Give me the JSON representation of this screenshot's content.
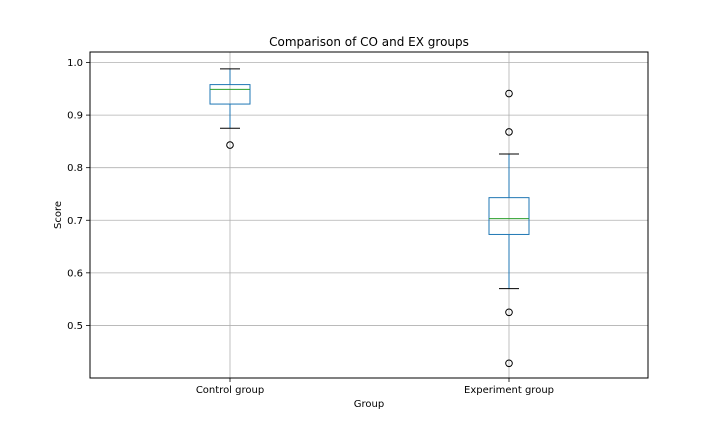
{
  "chart_data": {
    "type": "boxplot",
    "title": "Comparison of CO and EX groups",
    "xlabel": "Group",
    "ylabel": "Score",
    "categories": [
      "Control group",
      "Experiment group"
    ],
    "ylim": [
      0.4,
      1.02
    ],
    "yticks": [
      0.5,
      0.6,
      0.7,
      0.8,
      0.9,
      1.0
    ],
    "ytick_labels": [
      "0.5",
      "0.6",
      "0.7",
      "0.8",
      "0.9",
      "1.0"
    ],
    "grid": true,
    "boxes": [
      {
        "whisker_low": 0.875,
        "q1": 0.921,
        "median": 0.949,
        "q3": 0.958,
        "whisker_high": 0.988,
        "outliers": [
          0.843
        ]
      },
      {
        "whisker_low": 0.57,
        "q1": 0.673,
        "median": 0.703,
        "q3": 0.743,
        "whisker_high": 0.826,
        "outliers": [
          0.941,
          0.868,
          0.525,
          0.428
        ]
      }
    ],
    "colors": {
      "box": "#1f77b4",
      "median": "#2ca02c",
      "whisker": "#1f77b4",
      "cap": "#000000",
      "outlier": "#000000",
      "grid": "#b0b0b0"
    }
  }
}
